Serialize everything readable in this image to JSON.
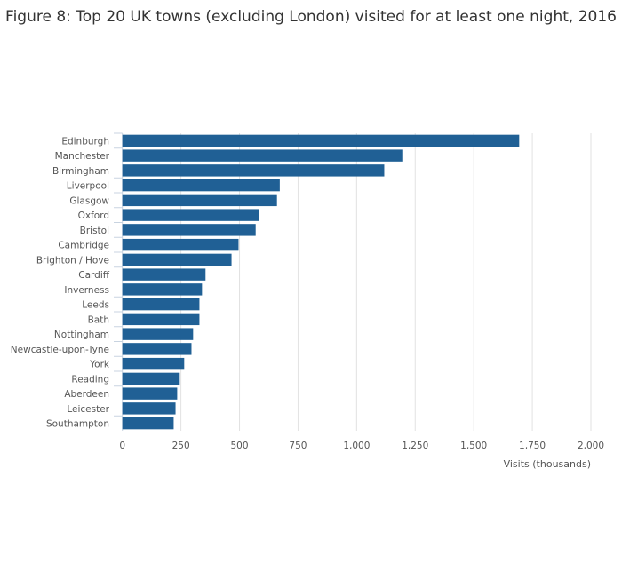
{
  "chart_data": {
    "type": "bar",
    "orientation": "horizontal",
    "title": "Figure 8: Top 20 UK towns (excluding London) visited for at least one night, 2016",
    "xlabel": "Visits (thousands)",
    "ylabel": "",
    "xlim": [
      0,
      2000
    ],
    "xticks": [
      0,
      250,
      500,
      750,
      1000,
      1250,
      1500,
      1750,
      2000
    ],
    "xtick_labels": [
      "0",
      "250",
      "500",
      "750",
      "1,000",
      "1,250",
      "1,500",
      "1,750",
      "2,000"
    ],
    "grid": true,
    "bar_color": "#206095",
    "categories": [
      "Edinburgh",
      "Manchester",
      "Birmingham",
      "Liverpool",
      "Glasgow",
      "Oxford",
      "Bristol",
      "Cambridge",
      "Brighton / Hove",
      "Cardiff",
      "Inverness",
      "Leeds",
      "Bath",
      "Nottingham",
      "Newcastle-upon-Tyne",
      "York",
      "Reading",
      "Aberdeen",
      "Leicester",
      "Southampton"
    ],
    "values": [
      1694,
      1195,
      1118,
      672,
      660,
      584,
      569,
      496,
      466,
      355,
      340,
      329,
      329,
      302,
      295,
      264,
      245,
      234,
      227,
      219
    ]
  }
}
